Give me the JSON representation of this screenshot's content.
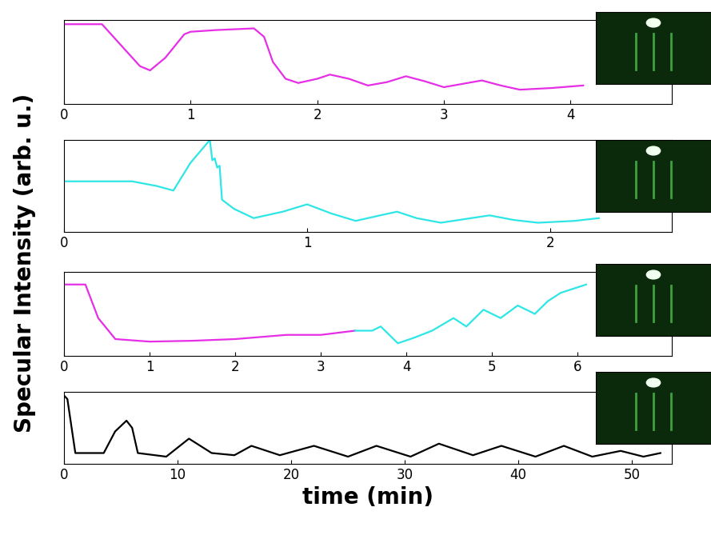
{
  "chart_data": [
    {
      "type": "line",
      "y_label": "Specular Intensity (arb. u.)",
      "xlim": [
        0,
        4.8
      ],
      "xticks": [
        0,
        1,
        2,
        3,
        4
      ],
      "ylim": [
        0,
        1
      ],
      "yticks": [],
      "tick_labels": "x",
      "grid": false,
      "series": [
        {
          "color": "#e62ee6",
          "x": [
            0,
            0.3,
            0.45,
            0.6,
            0.68,
            0.8,
            0.95,
            1.0,
            1.2,
            1.5,
            1.58,
            1.65,
            1.75,
            1.85,
            2.0,
            2.1,
            2.25,
            2.4,
            2.55,
            2.7,
            2.85,
            3.0,
            3.15,
            3.3,
            3.45,
            3.6,
            3.85,
            4.1
          ],
          "values": [
            0.95,
            0.95,
            0.7,
            0.45,
            0.4,
            0.55,
            0.83,
            0.86,
            0.88,
            0.9,
            0.8,
            0.5,
            0.3,
            0.25,
            0.3,
            0.35,
            0.3,
            0.22,
            0.26,
            0.33,
            0.27,
            0.2,
            0.24,
            0.28,
            0.22,
            0.17,
            0.19,
            0.22
          ]
        }
      ]
    },
    {
      "type": "line",
      "xlim": [
        0,
        2.5
      ],
      "xticks": [
        0,
        1,
        2
      ],
      "ylim": [
        0,
        1
      ],
      "yticks": [],
      "tick_labels": "x",
      "grid": false,
      "series": [
        {
          "color": "#2ee6e6",
          "x": [
            0,
            0.28,
            0.38,
            0.45,
            0.52,
            0.6,
            0.61,
            0.62,
            0.63,
            0.64,
            0.65,
            0.7,
            0.78,
            0.9,
            1.0,
            1.1,
            1.2,
            1.3,
            1.37,
            1.45,
            1.55,
            1.65,
            1.75,
            1.85,
            1.95,
            2.1,
            2.2
          ],
          "values": [
            0.55,
            0.55,
            0.5,
            0.45,
            0.75,
            1.0,
            0.78,
            0.8,
            0.7,
            0.72,
            0.35,
            0.25,
            0.15,
            0.22,
            0.3,
            0.2,
            0.12,
            0.18,
            0.22,
            0.15,
            0.1,
            0.14,
            0.18,
            0.13,
            0.1,
            0.12,
            0.15
          ]
        }
      ]
    },
    {
      "type": "line",
      "xlim": [
        0,
        7.1
      ],
      "xticks": [
        0,
        1,
        2,
        3,
        4,
        5,
        6
      ],
      "ylim": [
        0,
        1
      ],
      "yticks": [],
      "tick_labels": "x",
      "grid": false,
      "series": [
        {
          "color": "#e62ee6",
          "x": [
            0,
            0.25,
            0.4,
            0.6,
            1.0,
            1.5,
            2.0,
            2.6,
            3.0,
            3.4
          ],
          "values": [
            0.85,
            0.85,
            0.45,
            0.2,
            0.17,
            0.18,
            0.2,
            0.25,
            0.25,
            0.3
          ]
        },
        {
          "color": "#2ee6e6",
          "x": [
            3.4,
            3.6,
            3.7,
            3.9,
            4.1,
            4.3,
            4.55,
            4.7,
            4.9,
            5.1,
            5.3,
            5.5,
            5.65,
            5.8,
            6.1
          ],
          "values": [
            0.3,
            0.3,
            0.35,
            0.15,
            0.22,
            0.3,
            0.45,
            0.35,
            0.55,
            0.45,
            0.6,
            0.5,
            0.65,
            0.75,
            0.85
          ]
        }
      ]
    },
    {
      "type": "line",
      "x_label": "time (min)",
      "xlim": [
        0,
        53.5
      ],
      "xticks": [
        0,
        10,
        20,
        30,
        40,
        50
      ],
      "ylim": [
        0,
        1
      ],
      "yticks": [],
      "tick_labels": "x",
      "grid": false,
      "series": [
        {
          "color": "#000000",
          "x": [
            0,
            0.3,
            1.0,
            3.5,
            4.5,
            5.5,
            6.0,
            6.5,
            9.0,
            11.0,
            13.0,
            15.0,
            16.5,
            19.0,
            22.0,
            25.0,
            27.5,
            30.5,
            33.0,
            36.0,
            38.5,
            41.5,
            44.0,
            46.5,
            49.0,
            51.0,
            52.5
          ],
          "values": [
            0.95,
            0.9,
            0.15,
            0.15,
            0.45,
            0.6,
            0.5,
            0.15,
            0.1,
            0.35,
            0.15,
            0.12,
            0.25,
            0.12,
            0.25,
            0.1,
            0.25,
            0.1,
            0.28,
            0.12,
            0.25,
            0.1,
            0.25,
            0.1,
            0.18,
            0.1,
            0.15
          ]
        }
      ]
    }
  ]
}
